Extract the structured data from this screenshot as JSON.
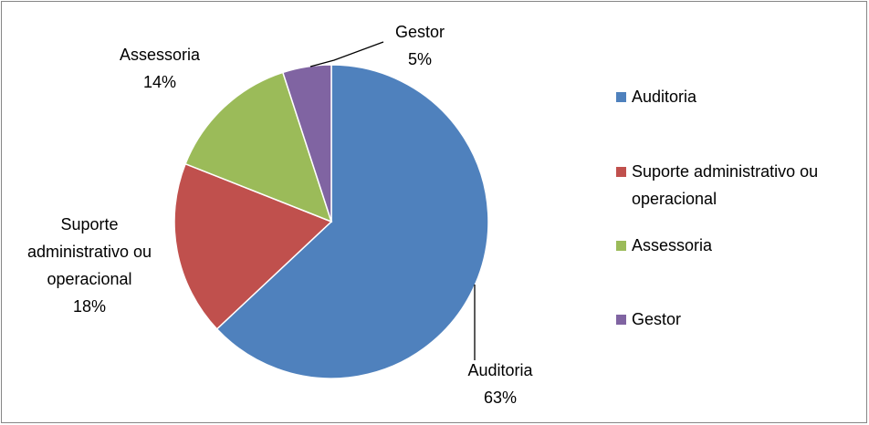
{
  "chart_data": {
    "type": "pie",
    "categories": [
      "Auditoria",
      "Suporte administrativo ou operacional",
      "Assessoria",
      "Gestor"
    ],
    "values": [
      63,
      18,
      14,
      5
    ],
    "value_labels": [
      "63%",
      "18%",
      "14%",
      "5%"
    ],
    "colors": [
      "#4f81bd",
      "#c0504d",
      "#9bbb59",
      "#8064a2"
    ],
    "legend": "right"
  }
}
